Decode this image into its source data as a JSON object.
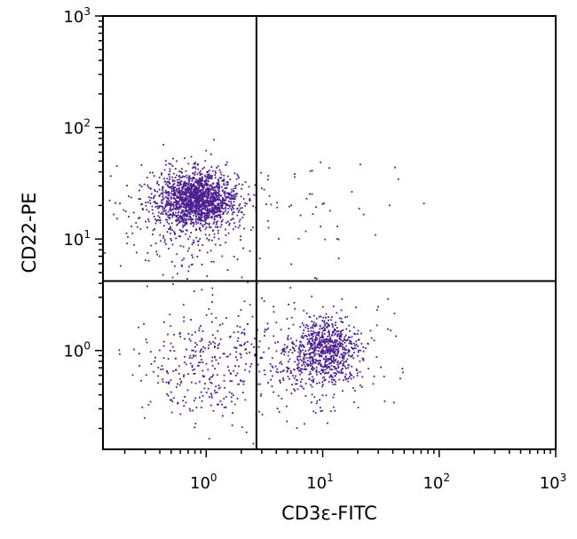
{
  "chart_data": {
    "type": "scatter",
    "title": "",
    "xlabel": "CD3ε-FITC",
    "ylabel": "CD22-PE",
    "x_scale": "log",
    "y_scale": "log",
    "xlim": [
      0.13,
      1000
    ],
    "ylim": [
      0.13,
      1000
    ],
    "grid": false,
    "x_ticks": [
      {
        "base": "10",
        "exp": "0",
        "value": 1
      },
      {
        "base": "10",
        "exp": "1",
        "value": 10
      },
      {
        "base": "10",
        "exp": "2",
        "value": 100
      },
      {
        "base": "10",
        "exp": "3",
        "value": 1000
      }
    ],
    "y_ticks": [
      {
        "base": "10",
        "exp": "0",
        "value": 1
      },
      {
        "base": "10",
        "exp": "1",
        "value": 10
      },
      {
        "base": "10",
        "exp": "2",
        "value": 100
      },
      {
        "base": "10",
        "exp": "3",
        "value": 1000
      }
    ],
    "quadrant_gates": {
      "x": 2.7,
      "y": 4.2
    },
    "point_color": "#4b1d8f",
    "populations": [
      {
        "center": [
          0.85,
          23
        ],
        "spread_log10": [
          0.17,
          0.12
        ],
        "count": 1450
      },
      {
        "center": [
          0.65,
          16
        ],
        "spread_log10": [
          0.3,
          0.25
        ],
        "count": 350
      },
      {
        "center": [
          10.5,
          1.0
        ],
        "spread_log10": [
          0.14,
          0.14
        ],
        "count": 650
      },
      {
        "center": [
          8.0,
          0.85
        ],
        "spread_log10": [
          0.3,
          0.26
        ],
        "count": 320
      },
      {
        "center": [
          0.95,
          0.75
        ],
        "spread_log10": [
          0.26,
          0.26
        ],
        "count": 320
      },
      {
        "center": [
          4.5,
          14
        ],
        "spread_log10": [
          0.35,
          0.3
        ],
        "count": 40
      },
      {
        "center": [
          20,
          25
        ],
        "spread_log10": [
          0.45,
          0.15
        ],
        "count": 14
      }
    ]
  }
}
